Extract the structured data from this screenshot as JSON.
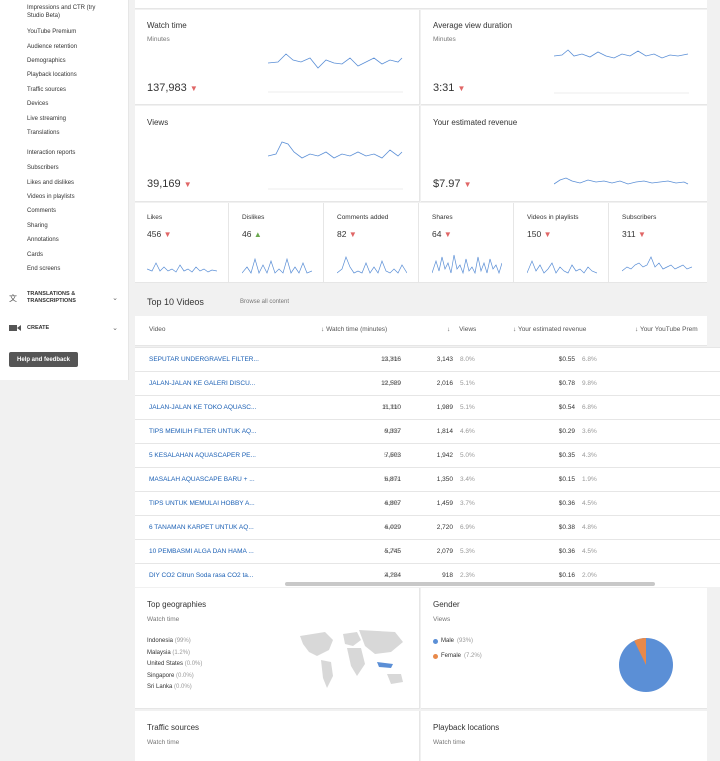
{
  "sidebar": {
    "items": [
      "Impressions and CTR (try Studio Beta)",
      "YouTube Premium",
      "Audience retention",
      "Demographics",
      "Playback locations",
      "Traffic sources",
      "Devices",
      "Live streaming",
      "Translations"
    ],
    "interaction_header": "Interaction reports",
    "interaction_items": [
      "Subscribers",
      "Likes and dislikes",
      "Videos in playlists",
      "Comments",
      "Sharing",
      "Annotations",
      "Cards",
      "End screens"
    ],
    "translations_label": "TRANSLATIONS & TRANSCRIPTIONS",
    "create_label": "CREATE",
    "help_label": "Help and feedback"
  },
  "cards": {
    "watch_time": {
      "title": "Watch time",
      "sub": "Minutes",
      "value": "137,983"
    },
    "avg_view": {
      "title": "Average view duration",
      "sub": "Minutes",
      "value": "3:31"
    },
    "views": {
      "title": "Views",
      "value": "39,169"
    },
    "revenue": {
      "title": "Your estimated revenue",
      "value": "$7.97"
    }
  },
  "minis": [
    {
      "title": "Likes",
      "value": "456",
      "trend": "down"
    },
    {
      "title": "Dislikes",
      "value": "46",
      "trend": "up"
    },
    {
      "title": "Comments added",
      "value": "82",
      "trend": "down"
    },
    {
      "title": "Shares",
      "value": "64",
      "trend": "down"
    },
    {
      "title": "Videos in playlists",
      "value": "150",
      "trend": "down"
    },
    {
      "title": "Subscribers",
      "value": "311",
      "trend": "down"
    }
  ],
  "top_videos": {
    "title": "Top 10 Videos",
    "browse": "Browse all content",
    "headers": {
      "video": "Video",
      "watch": "Watch time (minutes)",
      "views": "Views",
      "revenue": "Your estimated revenue",
      "premium": "Your YouTube Prem"
    },
    "rows": [
      {
        "title": "SEPUTAR UNDERGRAVEL FILTER...",
        "watch": "13,316",
        "watch_pct": "9.7%",
        "views": "3,143",
        "views_pct": "8.0%",
        "rev": "$0.55",
        "rev_pct": "6.8%"
      },
      {
        "title": "JALAN-JALAN KE GALERI DISCU...",
        "watch": "12,589",
        "watch_pct": "9.1%",
        "views": "2,016",
        "views_pct": "5.1%",
        "rev": "$0.78",
        "rev_pct": "9.8%"
      },
      {
        "title": "JALAN-JALAN KE TOKO AQUASC...",
        "watch": "11,110",
        "watch_pct": "8.1%",
        "views": "1,989",
        "views_pct": "5.1%",
        "rev": "$0.54",
        "rev_pct": "6.8%"
      },
      {
        "title": "TIPS MEMILIH FILTER UNTUK AQ...",
        "watch": "9,337",
        "watch_pct": "6.8%",
        "views": "1,814",
        "views_pct": "4.6%",
        "rev": "$0.29",
        "rev_pct": "3.6%"
      },
      {
        "title": "5 KESALAHAN AQUASCAPER PE...",
        "watch": "7,503",
        "watch_pct": "5.4%",
        "views": "1,942",
        "views_pct": "5.0%",
        "rev": "$0.35",
        "rev_pct": "4.3%"
      },
      {
        "title": "MASALAH AQUASCAPE BARU + ...",
        "watch": "6,871",
        "watch_pct": "5.0%",
        "views": "1,350",
        "views_pct": "3.4%",
        "rev": "$0.15",
        "rev_pct": "1.9%"
      },
      {
        "title": "TIPS UNTUK MEMULAI HOBBY A...",
        "watch": "6,807",
        "watch_pct": "4.9%",
        "views": "1,459",
        "views_pct": "3.7%",
        "rev": "$0.36",
        "rev_pct": "4.5%"
      },
      {
        "title": "6 TANAMAN KARPET UNTUK AQ...",
        "watch": "6,029",
        "watch_pct": "4.4%",
        "views": "2,720",
        "views_pct": "6.9%",
        "rev": "$0.38",
        "rev_pct": "4.8%"
      },
      {
        "title": "10 PEMBASMI ALGA DAN HAMA ...",
        "watch": "5,745",
        "watch_pct": "4.2%",
        "views": "2,079",
        "views_pct": "5.3%",
        "rev": "$0.36",
        "rev_pct": "4.5%"
      },
      {
        "title": "DIY CO2 Citrun Soda rasa CO2 ta...",
        "watch": "4,284",
        "watch_pct": "3.1%",
        "views": "918",
        "views_pct": "2.3%",
        "rev": "$0.16",
        "rev_pct": "2.0%"
      }
    ]
  },
  "geo": {
    "title": "Top geographies",
    "sub": "Watch time",
    "items": [
      {
        "name": "Indonesia",
        "pct": "(99%)"
      },
      {
        "name": "Malaysia",
        "pct": "(1.2%)"
      },
      {
        "name": "United States",
        "pct": "(0.0%)"
      },
      {
        "name": "Singapore",
        "pct": "(0.0%)"
      },
      {
        "name": "Sri Lanka",
        "pct": "(0.0%)"
      }
    ]
  },
  "gender": {
    "title": "Gender",
    "sub": "Views",
    "male": "Male",
    "male_pct": "(93%)",
    "female": "Female",
    "female_pct": "(7.2%)",
    "male_value": 93,
    "female_value": 7.2,
    "male_color": "#5b8fd6",
    "female_color": "#e8894a"
  },
  "traffic": {
    "title": "Traffic sources",
    "sub": "Watch time"
  },
  "playback": {
    "title": "Playback locations",
    "sub": "Watch time"
  },
  "colors": {
    "spark": "#5b8fd6",
    "down": "#e06666",
    "up": "#6aa84f",
    "link": "#1a5fb4"
  }
}
